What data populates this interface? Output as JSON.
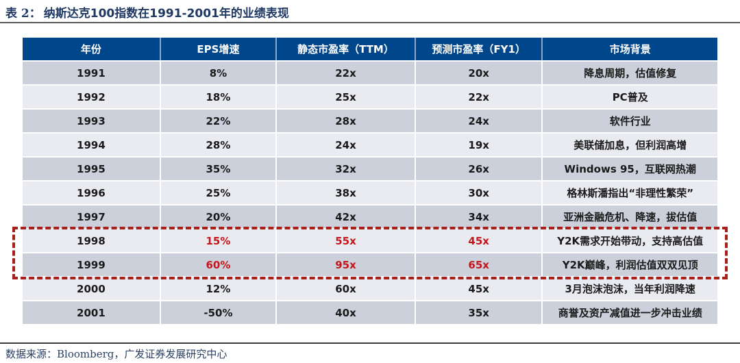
{
  "title": {
    "prefix": "表 2：",
    "text": "纳斯达克100指数在1991-2001年的业绩表现"
  },
  "table": {
    "headers": [
      "年份",
      "EPS增速",
      "静态市盈率（TTM）",
      "预测市盈率（FY1）",
      "市场背景"
    ],
    "rows": [
      {
        "year": "1991",
        "eps": "8%",
        "pe_ttm": "22x",
        "pe_fy1": "20x",
        "background": "降息周期，估值修复",
        "highlighted": false
      },
      {
        "year": "1992",
        "eps": "18%",
        "pe_ttm": "25x",
        "pe_fy1": "22x",
        "background": "PC普及",
        "highlighted": false
      },
      {
        "year": "1993",
        "eps": "22%",
        "pe_ttm": "28x",
        "pe_fy1": "24x",
        "background": "软件行业",
        "highlighted": false
      },
      {
        "year": "1994",
        "eps": "28%",
        "pe_ttm": "24x",
        "pe_fy1": "19x",
        "background": "美联储加息，但利润高增",
        "highlighted": false
      },
      {
        "year": "1995",
        "eps": "35%",
        "pe_ttm": "32x",
        "pe_fy1": "26x",
        "background": "Windows 95，互联网热潮",
        "highlighted": false
      },
      {
        "year": "1996",
        "eps": "25%",
        "pe_ttm": "38x",
        "pe_fy1": "30x",
        "background": "格林斯潘指出“非理性繁荣”",
        "highlighted": false
      },
      {
        "year": "1997",
        "eps": "20%",
        "pe_ttm": "42x",
        "pe_fy1": "34x",
        "background": "亚洲金融危机、降速，拔估值",
        "highlighted": false
      },
      {
        "year": "1998",
        "eps": "15%",
        "pe_ttm": "55x",
        "pe_fy1": "45x",
        "background": "Y2K需求开始带动，支持高估值",
        "highlighted": true
      },
      {
        "year": "1999",
        "eps": "60%",
        "pe_ttm": "95x",
        "pe_fy1": "65x",
        "background": "Y2K巅峰，利润估值双双见顶",
        "highlighted": true
      },
      {
        "year": "2000",
        "eps": "12%",
        "pe_ttm": "60x",
        "pe_fy1": "45x",
        "background": "3月泡沫泡沫，当年利润降速",
        "highlighted": false
      },
      {
        "year": "2001",
        "eps": "-50%",
        "pe_ttm": "40x",
        "pe_fy1": "35x",
        "background": "商誉及资产减值进一步冲击业绩",
        "highlighted": false
      }
    ]
  },
  "footer": {
    "text": "数据来源：Bloomberg，广发证券发展研究中心"
  },
  "colors": {
    "header_bg": "#00468B",
    "row_dark": "#CBD0DA",
    "row_light": "#E9EBF0",
    "highlight_text": "#C4161C",
    "highlight_border": "#A8201A",
    "title_navy": "#1F3864"
  }
}
